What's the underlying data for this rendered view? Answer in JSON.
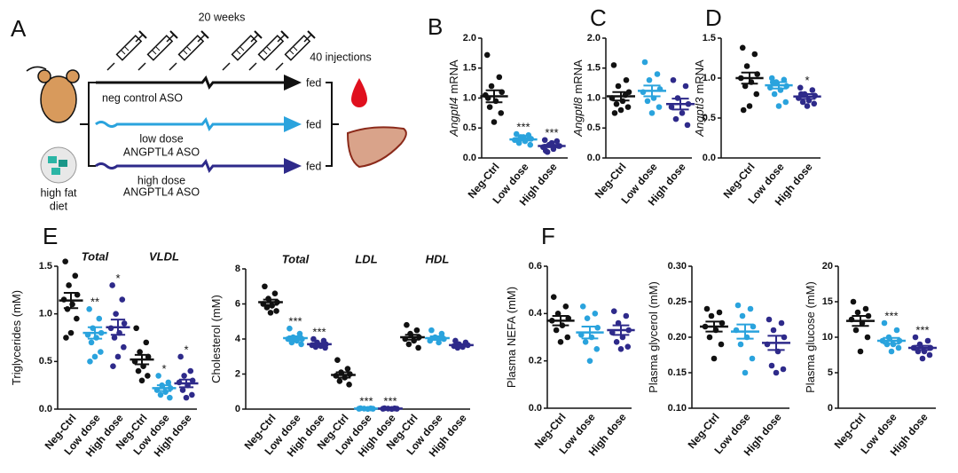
{
  "panels": [
    "A",
    "B",
    "C",
    "D",
    "E",
    "F"
  ],
  "diagram": {
    "duration": "20 weeks",
    "injections": "40 injections",
    "arms": [
      {
        "label": [
          "neg control ASO"
        ],
        "outcome": "fed"
      },
      {
        "label": [
          "low dose",
          "ANGPTL4 ASO"
        ],
        "outcome": "fed"
      },
      {
        "label": [
          "high dose",
          "ANGPTL4 ASO"
        ],
        "outcome": "fed"
      }
    ],
    "diet": [
      "high fat",
      "diet"
    ]
  },
  "chart_data": [
    {
      "type": "dotplot",
      "ylabel": [
        "Angptl4",
        "mRNA"
      ],
      "ylim": [
        0,
        2
      ],
      "yticks": [
        {
          "value": 0,
          "label": "0.0"
        },
        0.5,
        {
          "value": 1,
          "label": "1.0"
        },
        1.5,
        {
          "value": 2,
          "label": "2.0"
        }
      ],
      "groups": [
        {
          "label": "Neg-Ctrl",
          "color": "#111111",
          "values": [
            1.72,
            1.35,
            1.2,
            1.1,
            1.05,
            0.95,
            0.85,
            0.75,
            0.6,
            1.0
          ],
          "mean": 1.03,
          "sem": 0.1
        },
        {
          "label": "Low dose",
          "color": "#2aa3dd",
          "values": [
            0.4,
            0.38,
            0.35,
            0.32,
            0.3,
            0.28,
            0.25,
            0.22,
            0.35,
            0.3
          ],
          "mean": 0.31,
          "sem": 0.02,
          "annotation": "***"
        },
        {
          "label": "High dose",
          "color": "#2e2a8a",
          "values": [
            0.3,
            0.28,
            0.22,
            0.2,
            0.18,
            0.15,
            0.1,
            0.2,
            0.25,
            0.12
          ],
          "mean": 0.2,
          "sem": 0.02,
          "annotation": "***"
        }
      ]
    },
    {
      "type": "dotplot",
      "ylabel": [
        "Angptl8",
        "mRNA"
      ],
      "ylim": [
        0,
        2
      ],
      "yticks": [
        {
          "value": 0,
          "label": "0.0"
        },
        0.5,
        {
          "value": 1,
          "label": "1.0"
        },
        1.5,
        {
          "value": 2,
          "label": "2.0"
        }
      ],
      "groups": [
        {
          "label": "Neg-Ctrl",
          "color": "#111111",
          "values": [
            1.55,
            1.3,
            1.2,
            1.1,
            1.0,
            0.95,
            0.9,
            0.85,
            0.8,
            0.75,
            1.05
          ],
          "mean": 1.03,
          "sem": 0.07
        },
        {
          "label": "Low dose",
          "color": "#2aa3dd",
          "values": [
            1.6,
            1.4,
            1.3,
            1.15,
            1.1,
            1.0,
            0.95,
            0.85,
            0.75
          ],
          "mean": 1.12,
          "sem": 0.09
        },
        {
          "label": "High dose",
          "color": "#2e2a8a",
          "values": [
            1.3,
            1.2,
            1.0,
            0.9,
            0.85,
            0.75,
            0.65,
            0.55
          ],
          "mean": 0.9,
          "sem": 0.09
        }
      ]
    },
    {
      "type": "dotplot",
      "ylabel": [
        "Angptl3",
        "mRNA"
      ],
      "ylim": [
        0,
        1.5
      ],
      "yticks": [
        {
          "value": 0,
          "label": "0.0"
        },
        0.5,
        {
          "value": 1,
          "label": "1.0"
        },
        1.5
      ],
      "groups": [
        {
          "label": "Neg-Ctrl",
          "color": "#111111",
          "values": [
            1.38,
            1.3,
            1.15,
            1.05,
            1.0,
            0.95,
            0.9,
            0.8,
            0.65,
            0.6
          ],
          "mean": 1.0,
          "sem": 0.07
        },
        {
          "label": "Low dose",
          "color": "#2aa3dd",
          "values": [
            1.0,
            0.98,
            0.95,
            0.9,
            0.88,
            0.85,
            0.8,
            0.7,
            0.65,
            0.95
          ],
          "mean": 0.91,
          "sem": 0.04
        },
        {
          "label": "High dose",
          "color": "#2e2a8a",
          "values": [
            0.88,
            0.85,
            0.8,
            0.78,
            0.75,
            0.72,
            0.7,
            0.68,
            0.65,
            0.8
          ],
          "mean": 0.77,
          "sem": 0.03,
          "annotation": "*"
        }
      ]
    },
    {
      "type": "dotplot",
      "ylabel": [
        "Triglycerides (mM)"
      ],
      "ylim": [
        0,
        1.5
      ],
      "sections": [
        "Total",
        "VLDL"
      ],
      "yticks": [
        {
          "value": 0,
          "label": "0.0"
        },
        0.5,
        {
          "value": 1,
          "label": "1.0"
        },
        1.5
      ],
      "groups": [
        {
          "label": "Neg-Ctrl",
          "color": "#111111",
          "values": [
            1.55,
            1.4,
            1.3,
            1.2,
            1.15,
            1.1,
            1.05,
            0.95,
            0.8,
            0.75
          ],
          "mean": 1.14,
          "sem": 0.08
        },
        {
          "label": "Low dose",
          "color": "#2aa3dd",
          "values": [
            1.05,
            0.95,
            0.85,
            0.8,
            0.78,
            0.75,
            0.7,
            0.6,
            0.55,
            0.5
          ],
          "mean": 0.8,
          "sem": 0.06,
          "annotation": "**"
        },
        {
          "label": "High dose",
          "color": "#2e2a8a",
          "values": [
            1.3,
            1.15,
            1.0,
            0.9,
            0.85,
            0.8,
            0.75,
            0.65,
            0.55,
            0.45
          ],
          "mean": 0.86,
          "sem": 0.08,
          "annotation": "*"
        },
        {
          "label": "Neg-Ctrl",
          "color": "#111111",
          "values": [
            0.85,
            0.7,
            0.6,
            0.55,
            0.5,
            0.45,
            0.4,
            0.35,
            0.3
          ],
          "mean": 0.52,
          "sem": 0.05
        },
        {
          "label": "Low dose",
          "color": "#2aa3dd",
          "values": [
            0.35,
            0.28,
            0.25,
            0.22,
            0.2,
            0.18,
            0.15,
            0.12
          ],
          "mean": 0.22,
          "sem": 0.03,
          "annotation": "*"
        },
        {
          "label": "High dose",
          "color": "#2e2a8a",
          "values": [
            0.55,
            0.4,
            0.35,
            0.3,
            0.28,
            0.25,
            0.2,
            0.15,
            0.12
          ],
          "mean": 0.27,
          "sem": 0.04,
          "annotation": "*"
        }
      ]
    },
    {
      "type": "dotplot",
      "ylabel": [
        "Cholesterol (mM)"
      ],
      "ylim": [
        0,
        8
      ],
      "yticks": [
        0,
        2,
        4,
        6,
        8
      ],
      "sections": [
        "Total",
        "LDL",
        "HDL"
      ],
      "groups": [
        {
          "label": "Neg-Ctrl",
          "color": "#111111",
          "values": [
            7.0,
            6.6,
            6.3,
            6.1,
            6.0,
            5.9,
            5.8,
            5.6,
            5.5
          ],
          "mean": 6.1,
          "sem": 0.15
        },
        {
          "label": "Low dose",
          "color": "#2aa3dd",
          "values": [
            4.6,
            4.3,
            4.1,
            4.0,
            4.0,
            3.9,
            3.8,
            3.7
          ],
          "mean": 4.05,
          "sem": 0.1,
          "annotation": "***"
        },
        {
          "label": "High dose",
          "color": "#2e2a8a",
          "values": [
            4.0,
            3.9,
            3.8,
            3.7,
            3.65,
            3.6,
            3.55,
            3.5
          ],
          "mean": 3.7,
          "sem": 0.06,
          "annotation": "***"
        },
        {
          "label": "Neg-Ctrl",
          "color": "#111111",
          "values": [
            2.8,
            2.3,
            2.1,
            2.0,
            1.9,
            1.8,
            1.6,
            1.4
          ],
          "mean": 1.95,
          "sem": 0.15
        },
        {
          "label": "Low dose",
          "color": "#2aa3dd",
          "values": [
            0.05,
            0.04,
            0.03,
            0.02,
            0.02,
            0.01
          ],
          "mean": 0.03,
          "sem": 0.01,
          "annotation": "***"
        },
        {
          "label": "High dose",
          "color": "#2e2a8a",
          "values": [
            0.05,
            0.04,
            0.03,
            0.02,
            0.02,
            0.01
          ],
          "mean": 0.03,
          "sem": 0.01,
          "annotation": "***"
        },
        {
          "label": "Neg-Ctrl",
          "color": "#111111",
          "values": [
            4.8,
            4.5,
            4.3,
            4.1,
            4.0,
            3.9,
            3.7,
            3.5
          ],
          "mean": 4.1,
          "sem": 0.14
        },
        {
          "label": "Low dose",
          "color": "#2aa3dd",
          "values": [
            4.5,
            4.3,
            4.1,
            4.0,
            3.9,
            3.8
          ],
          "mean": 4.05,
          "sem": 0.1
        },
        {
          "label": "High dose",
          "color": "#2e2a8a",
          "values": [
            3.9,
            3.8,
            3.7,
            3.65,
            3.6,
            3.55,
            3.5
          ],
          "mean": 3.65,
          "sem": 0.05
        }
      ]
    },
    {
      "type": "dotplot",
      "ylabel": [
        "Plasma NEFA (mM)"
      ],
      "ylim": [
        0,
        0.6
      ],
      "yticks": [
        {
          "value": 0,
          "label": "0.0"
        },
        0.2,
        0.4,
        0.6
      ],
      "groups": [
        {
          "label": "Neg-Ctrl",
          "color": "#111111",
          "values": [
            0.47,
            0.43,
            0.4,
            0.38,
            0.37,
            0.35,
            0.33,
            0.3,
            0.28
          ],
          "mean": 0.37,
          "sem": 0.02
        },
        {
          "label": "Low dose",
          "color": "#2aa3dd",
          "values": [
            0.43,
            0.4,
            0.38,
            0.34,
            0.31,
            0.3,
            0.28,
            0.25,
            0.2
          ],
          "mean": 0.32,
          "sem": 0.025
        },
        {
          "label": "High dose",
          "color": "#2e2a8a",
          "values": [
            0.41,
            0.39,
            0.36,
            0.33,
            0.32,
            0.3,
            0.28,
            0.26,
            0.25
          ],
          "mean": 0.33,
          "sem": 0.02
        }
      ]
    },
    {
      "type": "dotplot",
      "ylabel": [
        "Plasma glycerol (mM)"
      ],
      "ylim": [
        0.1,
        0.3
      ],
      "yticks": [
        {
          "value": 0.1,
          "label": "0.10"
        },
        0.15,
        {
          "value": 0.2,
          "label": "0.20"
        },
        0.25,
        {
          "value": 0.3,
          "label": "0.30"
        }
      ],
      "groups": [
        {
          "label": "Neg-Ctrl",
          "color": "#111111",
          "values": [
            0.24,
            0.235,
            0.23,
            0.22,
            0.215,
            0.21,
            0.2,
            0.19,
            0.17
          ],
          "mean": 0.215,
          "sem": 0.007
        },
        {
          "label": "Low dose",
          "color": "#2aa3dd",
          "values": [
            0.245,
            0.24,
            0.23,
            0.215,
            0.21,
            0.2,
            0.19,
            0.17,
            0.15
          ],
          "mean": 0.208,
          "sem": 0.01
        },
        {
          "label": "High dose",
          "color": "#2e2a8a",
          "values": [
            0.225,
            0.22,
            0.21,
            0.2,
            0.19,
            0.18,
            0.16,
            0.155,
            0.15
          ],
          "mean": 0.192,
          "sem": 0.01
        }
      ]
    },
    {
      "type": "dotplot",
      "ylabel": [
        "Plasma glucose (mM)"
      ],
      "ylim": [
        0,
        20
      ],
      "yticks": [
        0,
        5,
        10,
        15,
        20
      ],
      "groups": [
        {
          "label": "Neg-Ctrl",
          "color": "#111111",
          "values": [
            15,
            14,
            13.5,
            13,
            12.5,
            12,
            11,
            10,
            8
          ],
          "mean": 12.3,
          "sem": 0.7
        },
        {
          "label": "Low dose",
          "color": "#2aa3dd",
          "values": [
            12,
            11,
            10,
            9.5,
            9.5,
            9,
            9,
            8.5,
            8
          ],
          "mean": 9.5,
          "sem": 0.4,
          "annotation": "***"
        },
        {
          "label": "High dose",
          "color": "#2e2a8a",
          "values": [
            10,
            9.5,
            9,
            8.5,
            8.5,
            8,
            8,
            7.5,
            7
          ],
          "mean": 8.5,
          "sem": 0.3,
          "annotation": "***"
        }
      ]
    }
  ]
}
